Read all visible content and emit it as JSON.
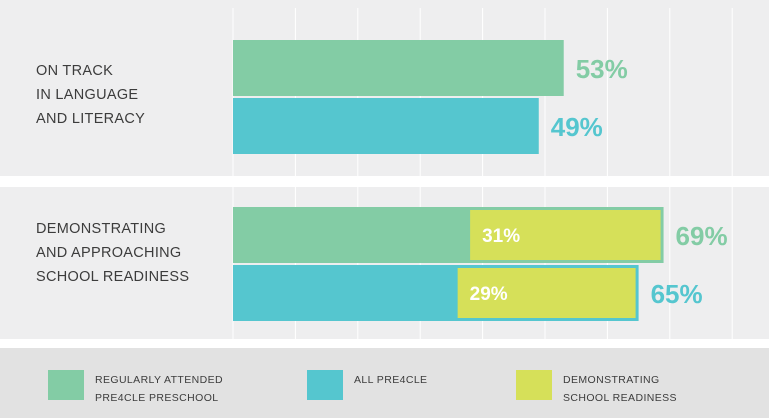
{
  "colors": {
    "regularly": "#83cca5",
    "all": "#55c6cf",
    "readiness": "#d6e059",
    "grid": "#ffffff"
  },
  "chart_data": {
    "type": "bar",
    "orientation": "horizontal",
    "categories": [
      "ON TRACK\nIN LANGUAGE\nAND LITERACY",
      "DEMONSTRATING\nAND APPROACHING\nSCHOOL READINESS"
    ],
    "series": [
      {
        "name": "REGULARLY ATTENDED PRE4CLE PRESCHOOL",
        "values": [
          53,
          69
        ]
      },
      {
        "name": "ALL PRE4CLE",
        "values": [
          49,
          65
        ]
      }
    ],
    "overlay": {
      "name": "DEMONSTRATING SCHOOL READINESS",
      "category_index": 1,
      "values": [
        31,
        29
      ]
    },
    "data_labels": {
      "series": [
        [
          "53%",
          "69%"
        ],
        [
          "49%",
          "65%"
        ]
      ],
      "overlay": [
        "31%",
        "29%"
      ]
    },
    "xlim": [
      0,
      100
    ],
    "grid": true,
    "legend_position": "bottom"
  },
  "legend": {
    "items": [
      {
        "label": "REGULARLY ATTENDED\nPRE4CLE PRESCHOOL",
        "color": "#83cca5"
      },
      {
        "label": "ALL PRE4CLE",
        "color": "#55c6cf"
      },
      {
        "label": "DEMONSTRATING\nSCHOOL READINESS",
        "color": "#d6e059"
      }
    ]
  }
}
